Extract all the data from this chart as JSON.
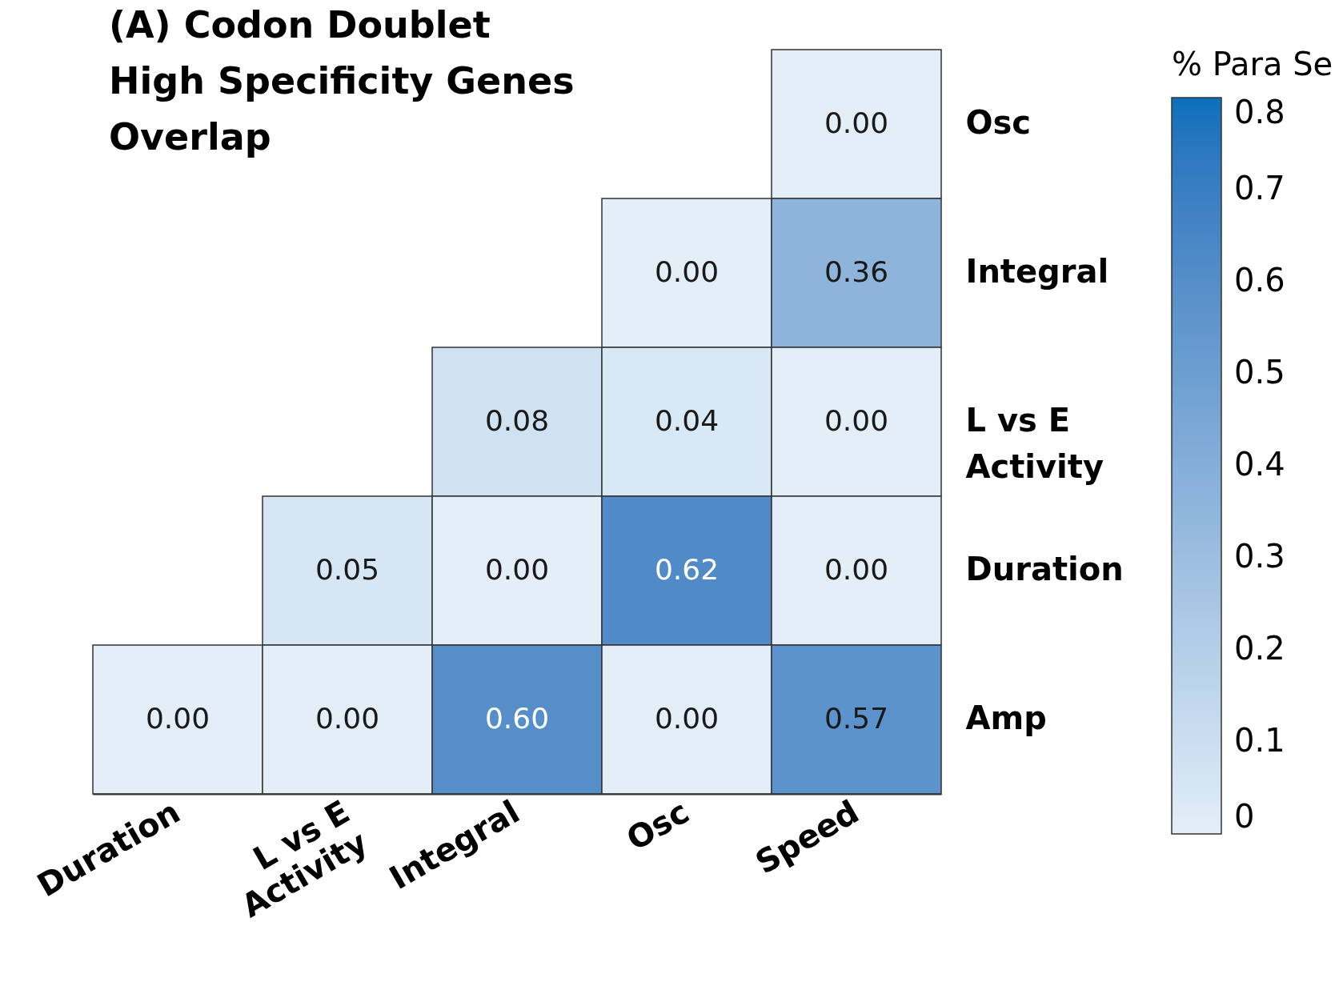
{
  "chart_data": {
    "type": "heatmap",
    "title": "(A) Codon Doublet\nHigh Specificity Genes\nOverlap",
    "clabel": "% Para Se",
    "categories": [
      "Duration",
      "L vs E\nActivity",
      "Integral",
      "Osc",
      "Speed"
    ],
    "y_categories": [
      "Osc",
      "Integral",
      "L vs E\nActivity",
      "Duration",
      "Amp"
    ],
    "cells": [
      [
        null,
        null,
        null,
        null,
        0.0
      ],
      [
        null,
        null,
        null,
        0.0,
        0.36
      ],
      [
        null,
        null,
        0.08,
        0.04,
        0.0
      ],
      [
        null,
        0.05,
        0.0,
        0.62,
        0.0
      ],
      [
        0.0,
        0.0,
        0.6,
        0.0,
        0.57
      ]
    ],
    "cell_labels": [
      [
        null,
        null,
        null,
        null,
        "0.00"
      ],
      [
        null,
        null,
        null,
        "0.00",
        "0.36"
      ],
      [
        null,
        null,
        "0.08",
        "0.04",
        "0.00"
      ],
      [
        null,
        "0.05",
        "0.00",
        "0.62",
        "0.00"
      ],
      [
        "0.00",
        "0.00",
        "0.60",
        "0.00",
        "0.57"
      ]
    ],
    "clim": [
      0,
      0.8
    ],
    "cticks": [
      0,
      0.1,
      0.2,
      0.3,
      0.4,
      0.5,
      0.6,
      0.7,
      0.8
    ]
  }
}
